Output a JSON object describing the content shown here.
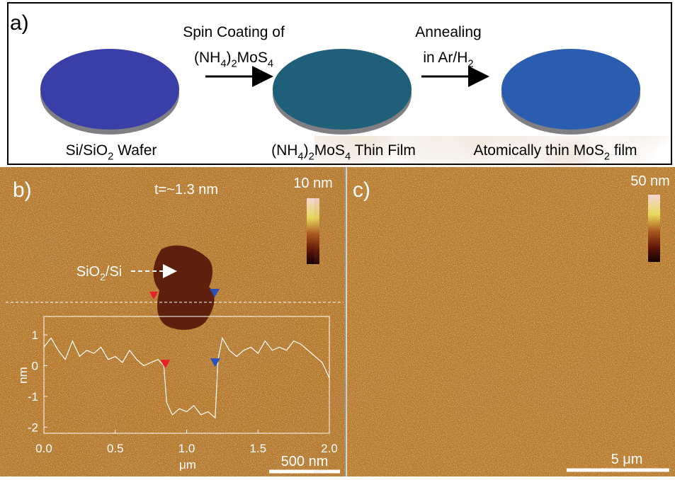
{
  "panel_a": {
    "label": "a)",
    "steps": [
      {
        "lines": [
          [
            "Spin Coating of"
          ],
          [
            "(NH",
            "4",
            ")",
            "2",
            "MoS",
            "4"
          ]
        ]
      },
      {
        "lines": [
          [
            "Annealing"
          ],
          [
            "in Ar/H",
            "2"
          ]
        ]
      }
    ],
    "wafers": [
      {
        "caption": [
          "Si/SiO",
          "2",
          " Wafer"
        ],
        "color": "#3a3fa8"
      },
      {
        "caption": [
          "(NH",
          "4",
          ")",
          "2",
          "MoS",
          "4",
          " Thin Film"
        ],
        "color": "#1f5f79"
      },
      {
        "caption": [
          "Atomically thin MoS",
          "2",
          " film"
        ],
        "color": "#2a5cb0"
      }
    ]
  },
  "panel_b": {
    "label": "b)",
    "thickness": "t=~1.3 nm",
    "colorbar_label": "10 nm",
    "arrow_label": [
      "SiO",
      "2",
      "/Si"
    ],
    "scale_bar": "500 nm",
    "profile": {
      "type": "line",
      "color": "#ffffff",
      "x": [
        0.0,
        0.05,
        0.1,
        0.15,
        0.2,
        0.25,
        0.3,
        0.35,
        0.4,
        0.45,
        0.5,
        0.55,
        0.6,
        0.65,
        0.7,
        0.75,
        0.8,
        0.84,
        0.86,
        0.9,
        0.95,
        1.0,
        1.05,
        1.1,
        1.15,
        1.2,
        1.22,
        1.25,
        1.3,
        1.35,
        1.4,
        1.45,
        1.5,
        1.55,
        1.6,
        1.65,
        1.7,
        1.75,
        1.8,
        1.85,
        1.9,
        1.95,
        2.0
      ],
      "values": [
        0.6,
        0.9,
        0.5,
        0.2,
        0.8,
        0.3,
        0.5,
        0.4,
        0.6,
        0.2,
        0.3,
        0.1,
        0.5,
        0.2,
        0.0,
        0.1,
        0.2,
        0.0,
        -1.2,
        -1.6,
        -1.4,
        -1.5,
        -1.3,
        -1.6,
        -1.5,
        -1.7,
        0.2,
        0.9,
        0.5,
        0.3,
        0.5,
        0.6,
        0.4,
        0.8,
        0.5,
        0.6,
        0.5,
        0.8,
        0.7,
        0.5,
        0.3,
        0.1,
        -0.4
      ],
      "xlim": [
        0,
        2
      ],
      "ylim": [
        -2.2,
        1.6
      ],
      "xticks": [
        {
          "value": 0,
          "label": "0.0"
        },
        0.5,
        {
          "value": 1,
          "label": "1.0"
        },
        1.5,
        {
          "value": 2,
          "label": "2.0"
        }
      ],
      "yticks": [
        -2,
        -1,
        0,
        1
      ],
      "xlabel": "μm",
      "ylabel": "nm",
      "markers": [
        {
          "x": 0.85,
          "y": 0.05,
          "color": "#e8202a"
        },
        {
          "x": 1.2,
          "y": 0.1,
          "color": "#2a4fb8"
        }
      ]
    }
  },
  "panel_c": {
    "label": "c)",
    "colorbar_label": "50 nm",
    "scale_bar": "5 μm"
  }
}
